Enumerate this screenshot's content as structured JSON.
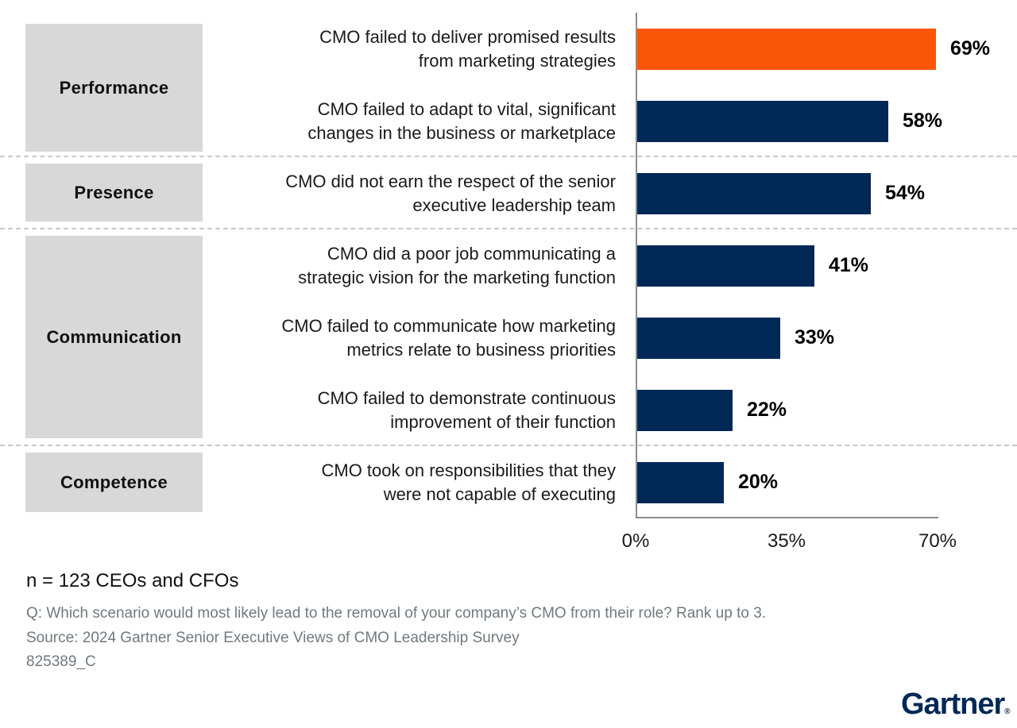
{
  "chart_data": {
    "type": "bar",
    "orientation": "horizontal",
    "title": "",
    "xlabel": "",
    "ylabel": "",
    "xlim": [
      0,
      70
    ],
    "unit": "%",
    "grid": false,
    "axis_ticks": [
      "0%",
      "35%",
      "70%"
    ],
    "axis_tick_values": [
      0,
      35,
      70
    ],
    "groups": [
      {
        "category": "Performance",
        "items": [
          {
            "label_lines": [
              "CMO failed to deliver promised results",
              "from marketing strategies"
            ],
            "value": 69,
            "value_label": "69%",
            "highlight": true
          },
          {
            "label_lines": [
              "CMO failed to adapt to vital, significant",
              "changes in the business or marketplace"
            ],
            "value": 58,
            "value_label": "58%",
            "highlight": false
          }
        ]
      },
      {
        "category": "Presence",
        "items": [
          {
            "label_lines": [
              "CMO did not earn the respect of the senior",
              "executive leadership team"
            ],
            "value": 54,
            "value_label": "54%",
            "highlight": false
          }
        ]
      },
      {
        "category": "Communication",
        "items": [
          {
            "label_lines": [
              "CMO did a poor job communicating a",
              "strategic vision for the marketing function"
            ],
            "value": 41,
            "value_label": "41%",
            "highlight": false
          },
          {
            "label_lines": [
              "CMO failed to communicate how marketing",
              "metrics relate to business priorities"
            ],
            "value": 33,
            "value_label": "33%",
            "highlight": false
          },
          {
            "label_lines": [
              "CMO failed to demonstrate continuous",
              "improvement of their function"
            ],
            "value": 22,
            "value_label": "22%",
            "highlight": false
          }
        ]
      },
      {
        "category": "Competence",
        "items": [
          {
            "label_lines": [
              "CMO took on responsibilities that they",
              "were not capable of executing"
            ],
            "value": 20,
            "value_label": "20%",
            "highlight": false
          }
        ]
      }
    ]
  },
  "colors": {
    "bar": "#002856",
    "bar_highlight": "#fb5608",
    "category_box": "#d8d8d8",
    "axis": "#8c8c8c",
    "dashed_separator": "#c9c9c9",
    "footnote_text": "#6f7a7e",
    "logo_navy": "#002856"
  },
  "footer": {
    "sample_note": "n = 123 CEOs and CFOs",
    "question": "Q: Which scenario would most likely lead to the removal of your company’s CMO from their role? Rank up to 3.",
    "source": "Source: 2024 Gartner Senior Executive Views of CMO Leadership Survey",
    "doc_code": "825389_C"
  },
  "logo": {
    "text": "Gartner",
    "reg": "®"
  }
}
